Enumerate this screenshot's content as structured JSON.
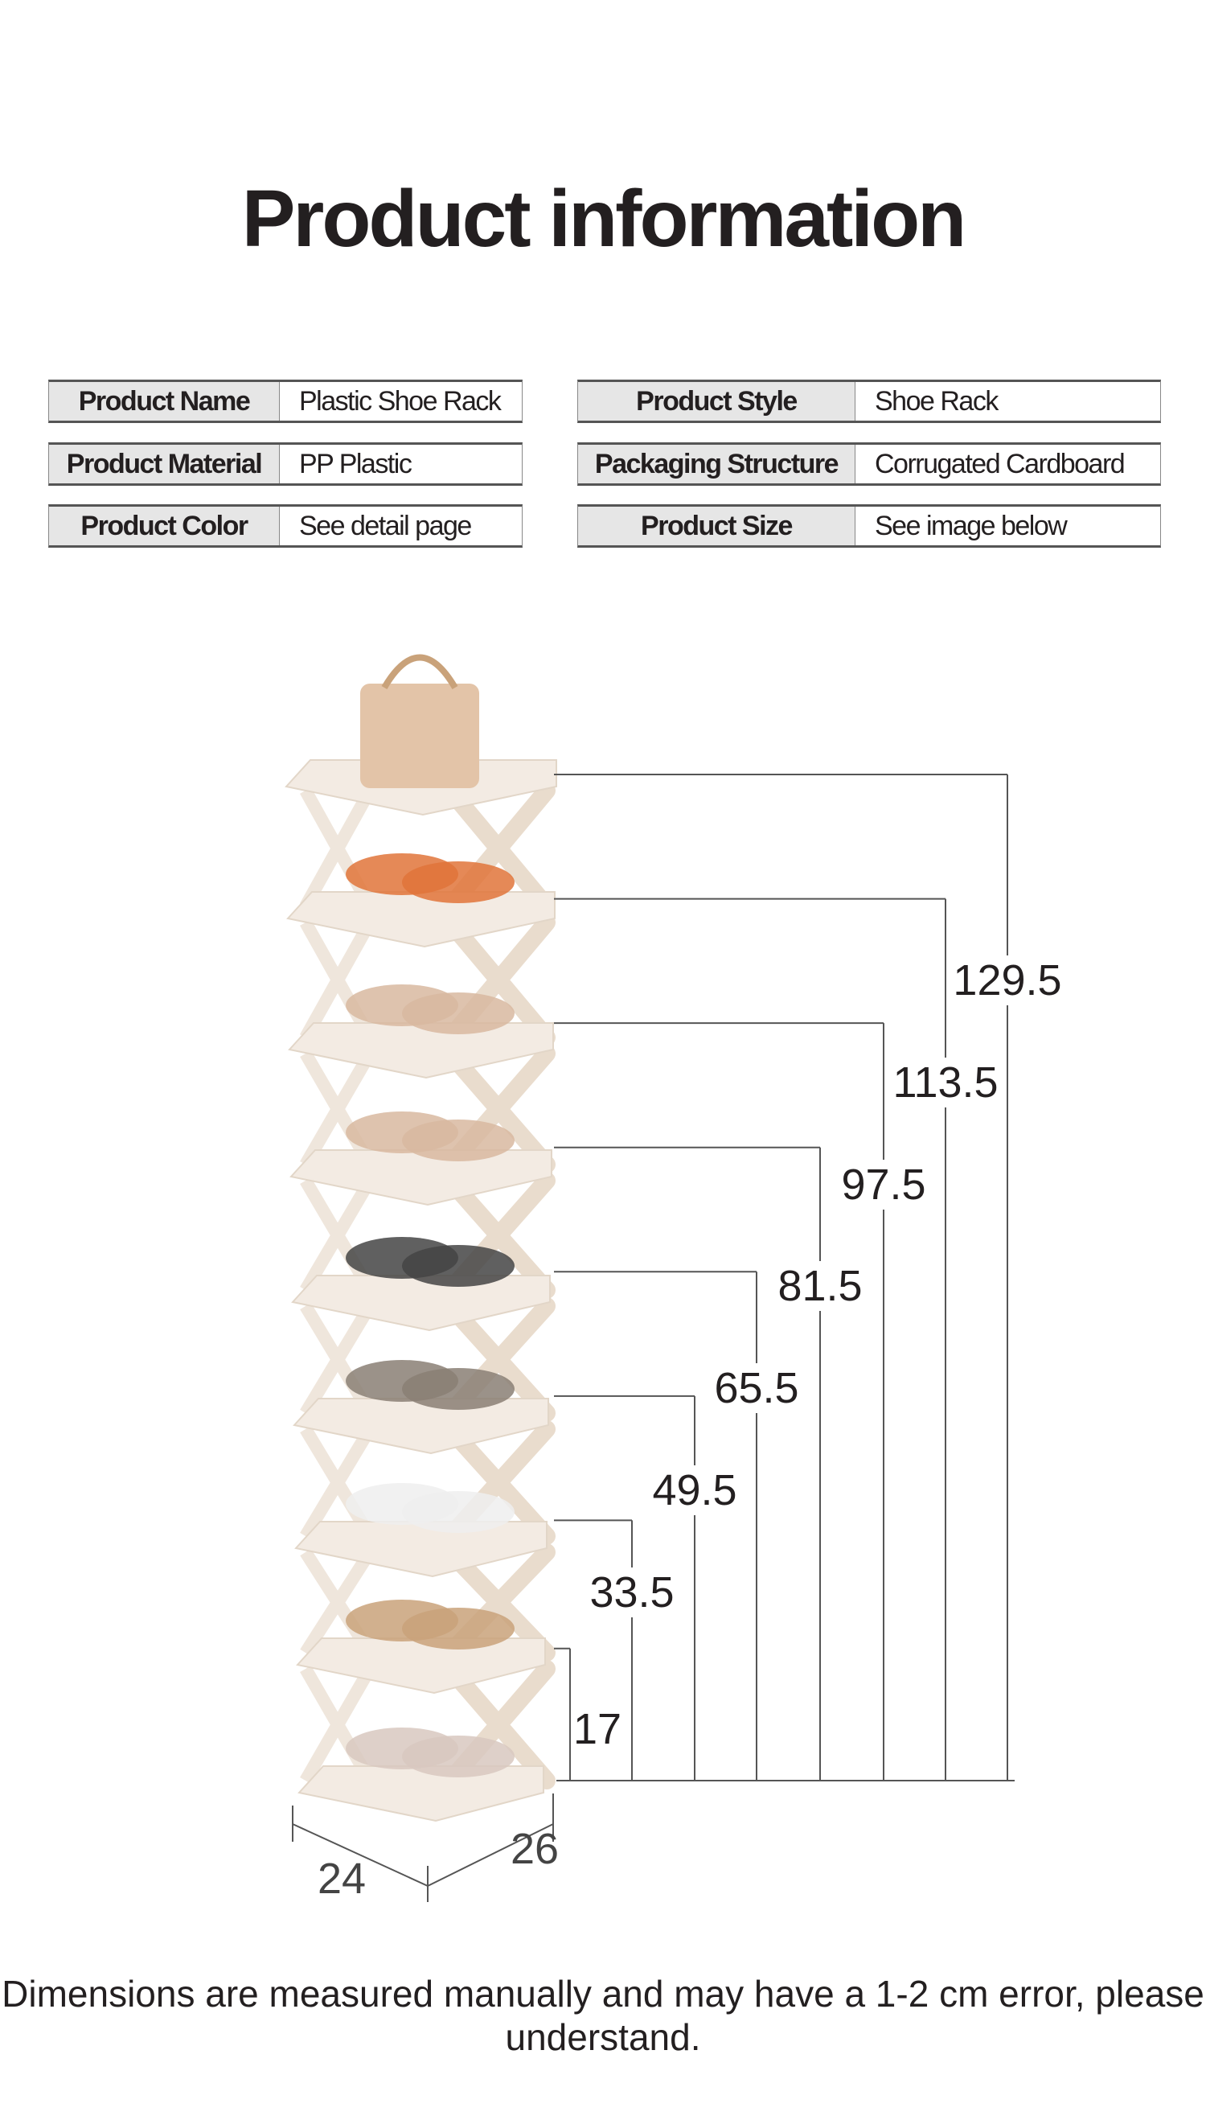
{
  "title": "Product information",
  "specs": [
    {
      "label": "Product Name",
      "value": "Plastic Shoe Rack"
    },
    {
      "label": "Product Style",
      "value": "Shoe Rack"
    },
    {
      "label": "Product Material",
      "value": "PP Plastic"
    },
    {
      "label": "Packaging Structure",
      "value": "Corrugated Cardboard"
    },
    {
      "label": "Product Color",
      "value": "See detail page"
    },
    {
      "label": "Product Size",
      "value": "See image below"
    }
  ],
  "dimensions": {
    "heights": [
      "17",
      "33.5",
      "49.5",
      "65.5",
      "81.5",
      "97.5",
      "113.5",
      "129.5"
    ],
    "width": "24",
    "depth": "26"
  },
  "footer": "Dimensions are measured manually and may have a 1-2 cm error, please understand.",
  "colors": {
    "shelf": "#f3ebe3",
    "frame": "#e9dccd",
    "line": "#555555"
  }
}
